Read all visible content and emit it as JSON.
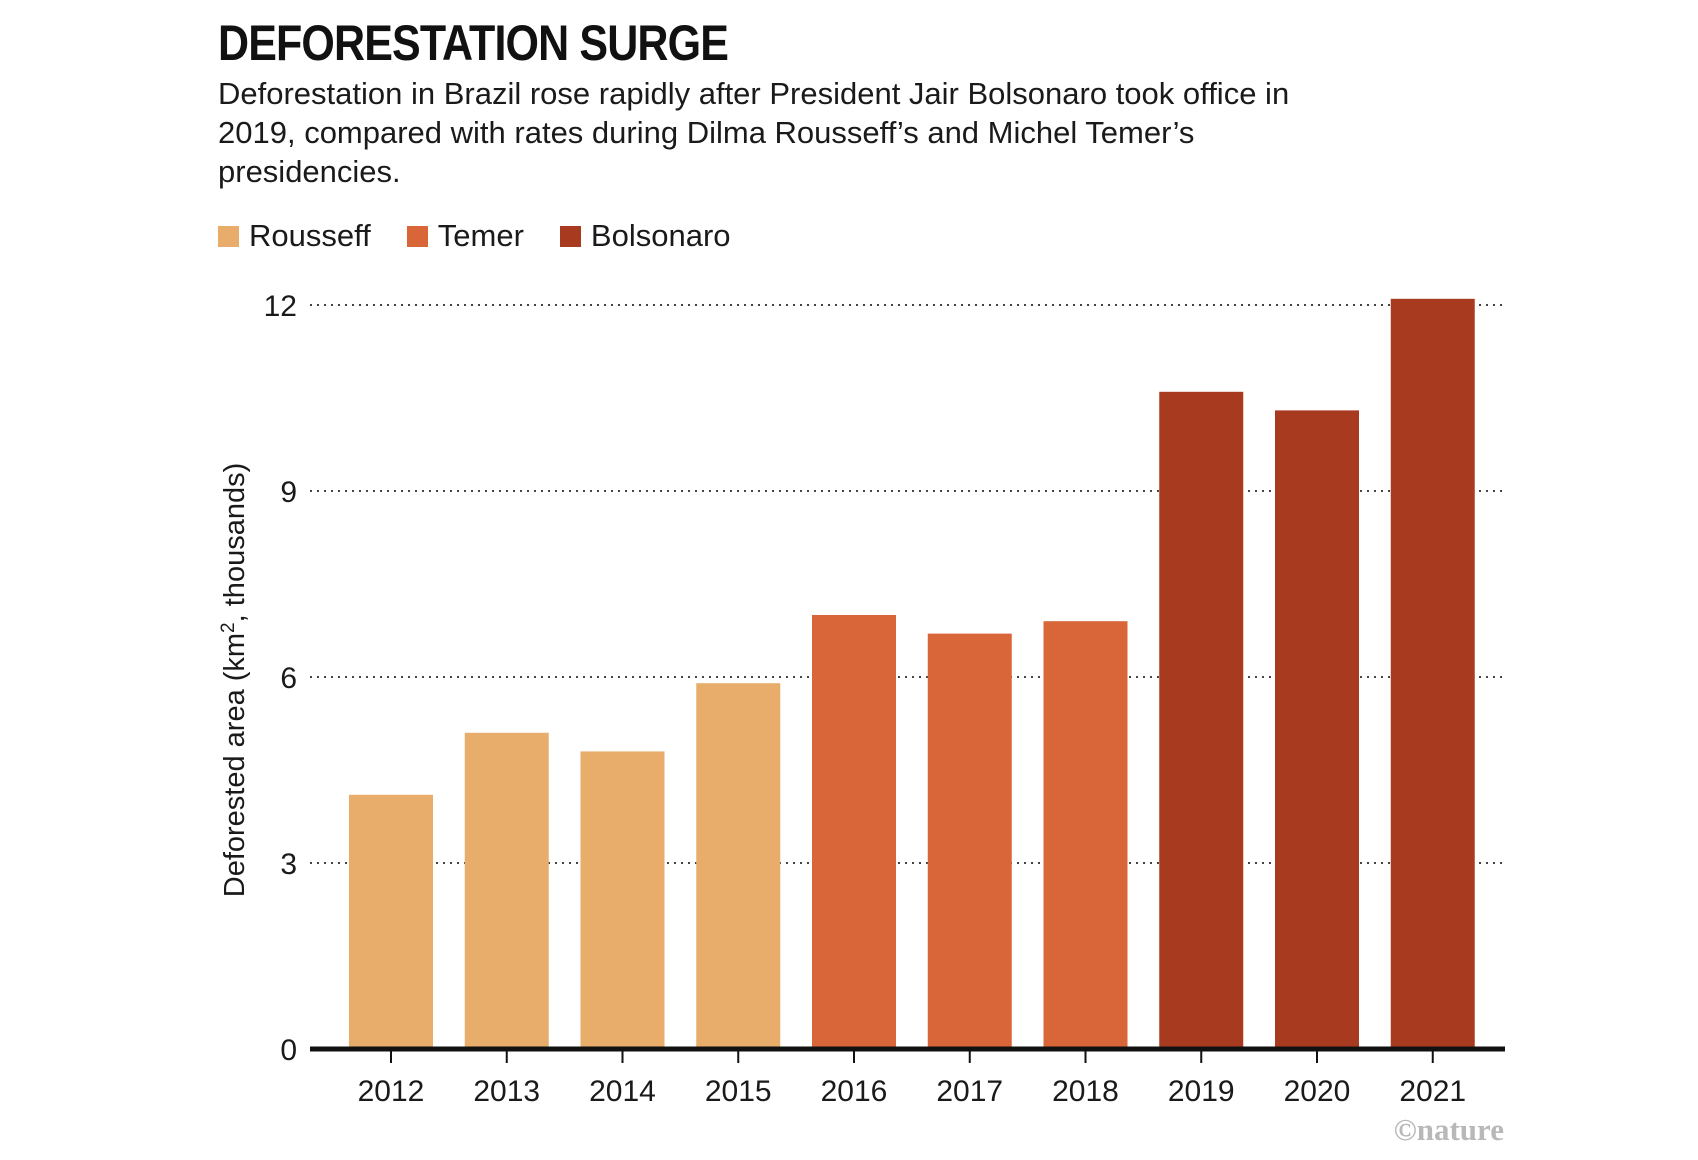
{
  "chart_data": {
    "type": "bar",
    "title": "DEFORESTATION SURGE",
    "subtitle": "Deforestation in Brazil rose rapidly after President Jair Bolsonaro took office in 2019, compared with rates during Dilma Rousseff’s and Michel Temer’s presidencies.",
    "ylabel_pre": "Deforested area (km",
    "ylabel_sup": "2",
    "ylabel_post": ", thousands)",
    "xlabel": "",
    "categories": [
      "2012",
      "2013",
      "2014",
      "2015",
      "2016",
      "2017",
      "2018",
      "2019",
      "2020",
      "2021"
    ],
    "values": [
      4.1,
      5.1,
      4.8,
      5.9,
      7.0,
      6.7,
      6.9,
      10.6,
      10.3,
      12.1
    ],
    "groups": [
      "Rousseff",
      "Rousseff",
      "Rousseff",
      "Rousseff",
      "Temer",
      "Temer",
      "Temer",
      "Bolsonaro",
      "Bolsonaro",
      "Bolsonaro"
    ],
    "legend": [
      {
        "name": "Rousseff",
        "color": "#e8ad6a"
      },
      {
        "name": "Temer",
        "color": "#d96638"
      },
      {
        "name": "Bolsonaro",
        "color": "#a83a20"
      }
    ],
    "yticks": [
      0,
      3,
      6,
      9,
      12
    ],
    "ylim": [
      0,
      12
    ],
    "grid": "dotted",
    "legend_position": "top-left"
  },
  "credit": "©nature"
}
